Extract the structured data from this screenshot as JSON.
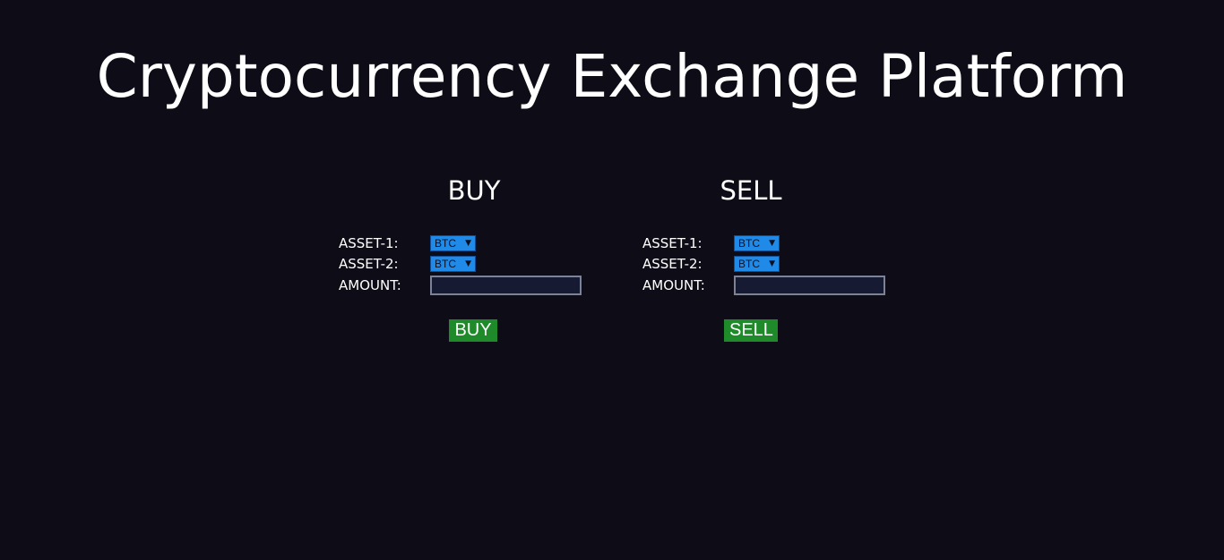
{
  "header": {
    "title": "Cryptocurrency Exchange Platform"
  },
  "buy_panel": {
    "heading": "BUY",
    "asset1_label": "ASSET-1:",
    "asset1_value": "BTC",
    "asset2_label": "ASSET-2:",
    "asset2_value": "BTC",
    "amount_label": "AMOUNT:",
    "amount_value": "",
    "button_label": "BUY"
  },
  "sell_panel": {
    "heading": "SELL",
    "asset1_label": "ASSET-1:",
    "asset1_value": "BTC",
    "asset2_label": "ASSET-2:",
    "asset2_value": "BTC",
    "amount_label": "AMOUNT:",
    "amount_value": "",
    "button_label": "SELL"
  },
  "icons": {
    "dropdown_chevron": "▼"
  },
  "colors": {
    "background": "#0e0d17",
    "select_accent": "#1f8ae8",
    "button_green": "#1e8a2a"
  }
}
